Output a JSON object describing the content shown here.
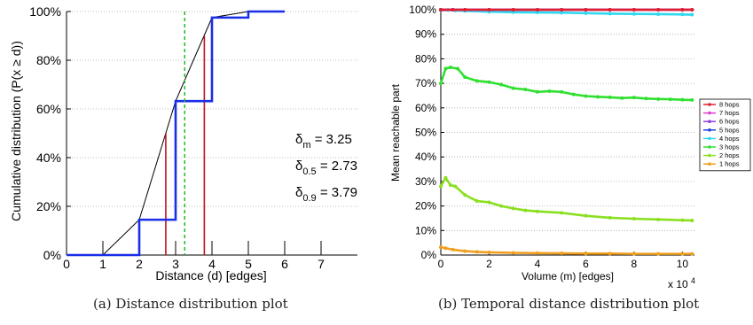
{
  "chart_data": [
    {
      "id": "a",
      "type": "line",
      "caption": "(a) Distance distribution plot",
      "xlabel": "Distance (d) [edges]",
      "ylabel": "Cumulative distribution (P(x ≥ d))",
      "xlim": [
        0,
        8
      ],
      "ylim": [
        0,
        100
      ],
      "xticks": [
        0,
        1,
        2,
        3,
        4,
        5,
        6,
        7
      ],
      "yticks": [
        0,
        20,
        40,
        60,
        80,
        100
      ],
      "ytick_suffix": "%",
      "grid": "y-dotted",
      "step_cdf": {
        "color": "#1a2ee8",
        "x": [
          0,
          1,
          2,
          3,
          4,
          5,
          6
        ],
        "y": [
          0,
          0,
          14.5,
          63.2,
          97.5,
          100,
          100
        ]
      },
      "interpolated_cdf": {
        "color": "#000000",
        "x": [
          0,
          1,
          2,
          3,
          4,
          5,
          6
        ],
        "y": [
          0,
          0,
          14.5,
          63.2,
          97.5,
          100,
          100
        ]
      },
      "red_markers": [
        {
          "x": 2.73,
          "y": 50
        },
        {
          "x": 3.79,
          "y": 90
        }
      ],
      "red_color": "#c0141c",
      "mean_line": {
        "x": 3.25,
        "color": "#22bb22"
      },
      "stats": [
        {
          "sym": "δ",
          "sub": "m",
          "val": "= 3.25"
        },
        {
          "sym": "δ",
          "sub": "0.5",
          "val": "= 2.73"
        },
        {
          "sym": "δ",
          "sub": "0.9",
          "val": "= 3.79"
        }
      ]
    },
    {
      "id": "b",
      "type": "line",
      "caption": "(b) Temporal distance distribution plot",
      "xlabel": "Volume (m) [edges]",
      "ylabel": "Mean reachable part",
      "xlim": [
        0,
        10.5
      ],
      "ylim": [
        0,
        100
      ],
      "xticks": [
        0,
        2,
        4,
        6,
        8,
        10
      ],
      "yticks": [
        0,
        10,
        20,
        30,
        40,
        50,
        60,
        70,
        80,
        90,
        100
      ],
      "ytick_suffix": "%",
      "x_multiplier": "x 10",
      "x_multiplier_exp": "4",
      "grid": "y-dotted",
      "legend_position": "right",
      "series": [
        {
          "name": "8 hops",
          "color": "#e0202a",
          "x": [
            0,
            0.5,
            1,
            2,
            3,
            4,
            5,
            6,
            7,
            8,
            9,
            10,
            10.4
          ],
          "y": [
            100,
            100,
            100,
            100,
            100,
            100,
            100,
            100,
            100,
            100,
            100,
            100,
            100
          ]
        },
        {
          "name": "7 hops",
          "color": "#e040d0",
          "x": [
            0,
            0.5,
            1,
            2,
            3,
            4,
            5,
            6,
            7,
            8,
            9,
            10,
            10.4
          ],
          "y": [
            100,
            100,
            100,
            100,
            100,
            100,
            100,
            100,
            100,
            100,
            100,
            100,
            100
          ]
        },
        {
          "name": "6 hops",
          "color": "#9040e0",
          "x": [
            0,
            0.5,
            1,
            2,
            3,
            4,
            5,
            6,
            7,
            8,
            9,
            10,
            10.4
          ],
          "y": [
            100,
            100,
            100,
            100,
            100,
            100,
            100,
            100,
            100,
            100,
            100,
            100,
            100
          ]
        },
        {
          "name": "5 hops",
          "color": "#2040e0",
          "x": [
            0,
            0.5,
            1,
            2,
            3,
            4,
            5,
            6,
            7,
            8,
            9,
            10,
            10.4
          ],
          "y": [
            100,
            100,
            100,
            100,
            100,
            100,
            100,
            100,
            100,
            100,
            100,
            100,
            100
          ]
        },
        {
          "name": "4 hops",
          "color": "#30d8f0",
          "x": [
            0,
            0.3,
            0.6,
            1,
            2,
            3,
            4,
            5,
            6,
            7,
            8,
            9,
            10,
            10.4
          ],
          "y": [
            99.8,
            99.9,
            99.7,
            99.5,
            99.2,
            99,
            98.9,
            98.8,
            98.6,
            98.4,
            98.3,
            98.2,
            98.1,
            98
          ]
        },
        {
          "name": "3 hops",
          "color": "#30e030",
          "x": [
            0,
            0.2,
            0.4,
            0.7,
            1,
            1.5,
            2,
            2.5,
            3,
            3.5,
            4,
            4.5,
            5,
            5.5,
            6,
            6.5,
            7,
            7.5,
            8,
            8.5,
            9,
            9.5,
            10,
            10.4
          ],
          "y": [
            70,
            76,
            76.5,
            76,
            72.5,
            71,
            70.5,
            69.5,
            68,
            67.5,
            66.5,
            66.8,
            66.5,
            65.5,
            64.8,
            64.5,
            64.3,
            64,
            64.2,
            63.8,
            63.6,
            63.5,
            63.3,
            63.2
          ]
        },
        {
          "name": "2 hops",
          "color": "#8ae020",
          "x": [
            0,
            0.2,
            0.4,
            0.6,
            1,
            1.5,
            2,
            2.5,
            3,
            3.5,
            4,
            5,
            6,
            7,
            8,
            9,
            10,
            10.4
          ],
          "y": [
            28,
            31.5,
            28.5,
            28,
            24.5,
            22,
            21.5,
            20,
            19,
            18.2,
            17.8,
            17.2,
            16,
            15.2,
            14.8,
            14.5,
            14.2,
            14.1
          ]
        },
        {
          "name": "1 hops",
          "color": "#f0a020",
          "x": [
            0,
            0.2,
            0.5,
            1,
            1.5,
            2,
            3,
            4,
            5,
            6,
            7,
            8,
            9,
            10,
            10.4
          ],
          "y": [
            3.2,
            2.8,
            2.2,
            1.6,
            1.3,
            1.1,
            0.9,
            0.8,
            0.7,
            0.6,
            0.6,
            0.5,
            0.5,
            0.5,
            0.5
          ]
        }
      ]
    }
  ]
}
